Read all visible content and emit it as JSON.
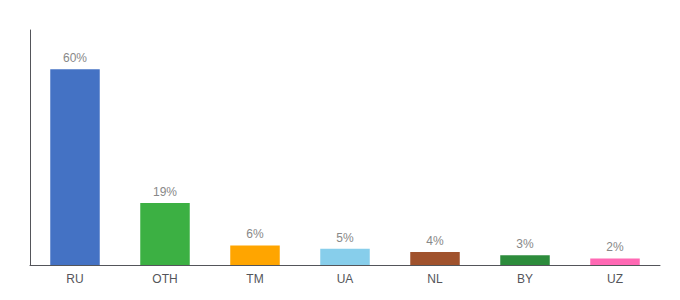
{
  "chart_data": {
    "type": "bar",
    "categories": [
      "RU",
      "OTH",
      "TM",
      "UA",
      "NL",
      "BY",
      "UZ"
    ],
    "values": [
      60,
      19,
      6,
      5,
      4,
      3,
      2
    ],
    "value_labels": [
      "60%",
      "19%",
      "6%",
      "5%",
      "4%",
      "3%",
      "2%"
    ],
    "colors": [
      "#4472C4",
      "#3CB043",
      "#FFA500",
      "#87CEEB",
      "#A0522D",
      "#2D8C3C",
      "#FF69B4"
    ],
    "ylim": [
      0,
      72
    ],
    "tick_labels": "x",
    "grid": false,
    "data_labels": true
  }
}
